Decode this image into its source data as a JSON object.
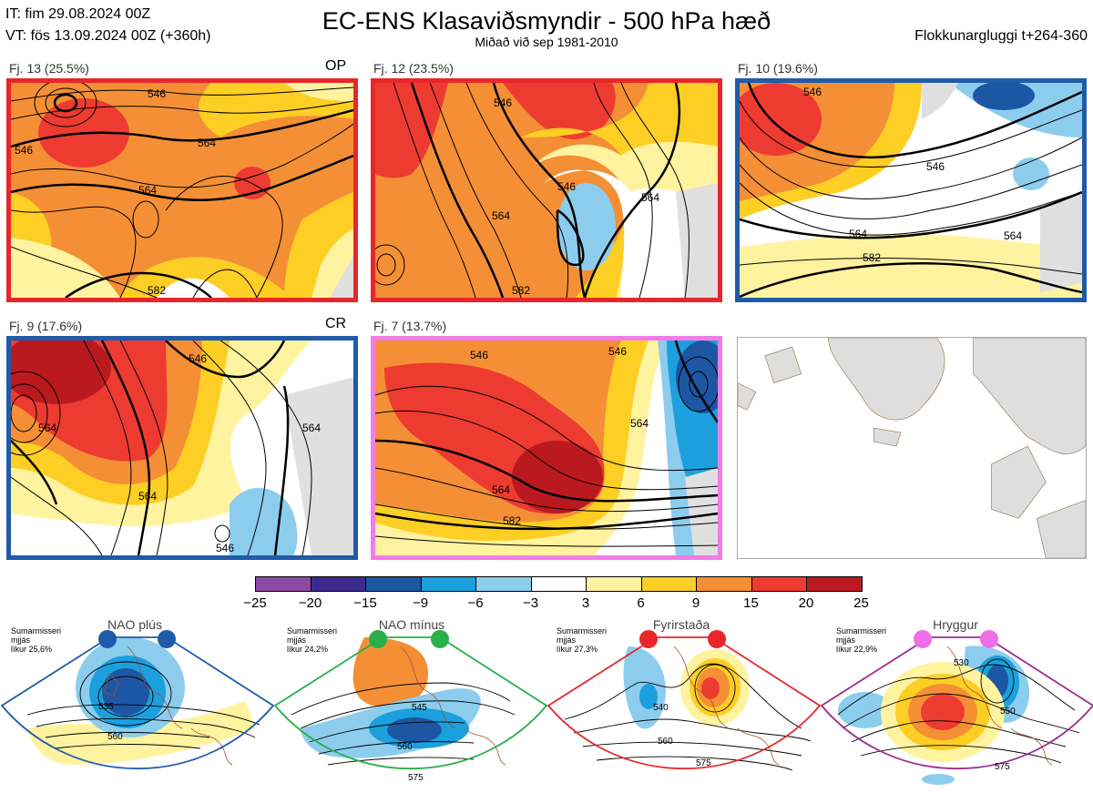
{
  "header": {
    "it_line": "IT: fim 29.08.2024 00Z",
    "vt_line": "VT: fös 13.09.2024 00Z  (+360h)",
    "title": "EC-ENS Klasaviðsmyndir - 500 hPa hæð",
    "subtitle": "Miðað við sep 1981-2010",
    "window": "Flokkunargluggi t+264-360"
  },
  "panels": [
    {
      "label": "Fj. 13 (25.5%)",
      "tag": "OP",
      "border_color": "#e8262a",
      "contours": [
        "546",
        "564",
        "546",
        "564",
        "582"
      ]
    },
    {
      "label": "Fj. 12 (23.5%)",
      "tag": "",
      "border_color": "#e8262a",
      "contours": [
        "546",
        "546",
        "564",
        "582",
        "564"
      ]
    },
    {
      "label": "Fj. 10 (19.6%)",
      "tag": "",
      "border_color": "#1f5ba8",
      "contours": [
        "546",
        "546",
        "564",
        "564",
        "582"
      ]
    },
    {
      "label": "Fj. 9 (17.6%)",
      "tag": "CR",
      "border_color": "#1f5ba8",
      "contours": [
        "564",
        "564",
        "546",
        "564",
        "546"
      ]
    },
    {
      "label": "Fj. 7 (13.7%)",
      "tag": "",
      "border_color": "#f27ce8",
      "contours": [
        "546",
        "564",
        "564",
        "582",
        "546"
      ]
    }
  ],
  "colorbar": {
    "ticks": [
      "−25",
      "−20",
      "−15",
      "−9",
      "−6",
      "−3",
      "3",
      "6",
      "9",
      "15",
      "20",
      "25"
    ],
    "colors": [
      "#8d4aa3",
      "#3d2a91",
      "#1d57a3",
      "#1ba0dd",
      "#8ccdee",
      "#ffffff",
      "#fff3a0",
      "#fdce24",
      "#f48f36",
      "#ee3b31",
      "#ba1a1f"
    ]
  },
  "regimes": [
    {
      "name": "NAO plús",
      "season": "Sumarmisseri",
      "method": "mjjás",
      "prob": "líkur 25,6%",
      "color": "#1f5ba8",
      "labels": [
        "535",
        "560"
      ]
    },
    {
      "name": "NAO mínus",
      "season": "Sumarmisseri",
      "method": "mjjás",
      "prob": "líkur 24,2%",
      "color": "#28b04b",
      "labels": [
        "545",
        "560",
        "575"
      ]
    },
    {
      "name": "Fyrirstaða",
      "season": "Sumarmisseri",
      "method": "mjjás",
      "prob": "líkur 27,3%",
      "color": "#e8262a",
      "labels": [
        "540",
        "560",
        "575"
      ]
    },
    {
      "name": "Hryggur",
      "season": "Sumarmisseri",
      "method": "mjjás",
      "prob": "líkur 22,9%",
      "color": "#ee6ee8",
      "labels": [
        "530",
        "550",
        "575"
      ]
    }
  ]
}
